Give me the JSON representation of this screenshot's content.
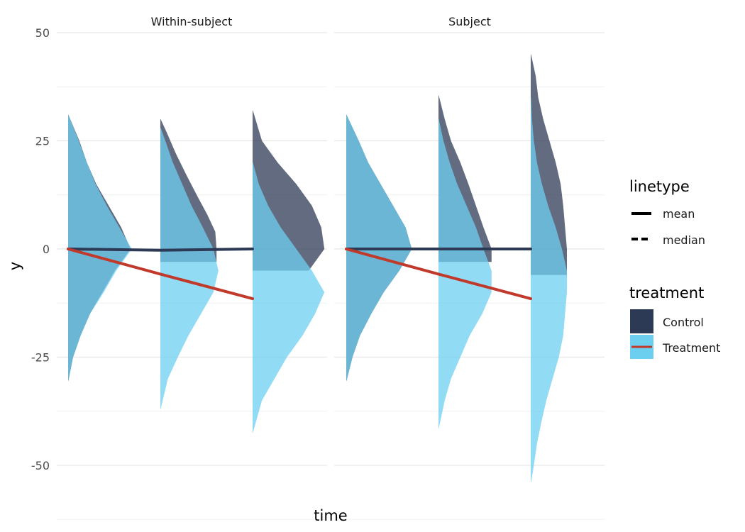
{
  "chart_data": {
    "type": "area",
    "subtype": "half-violin distributions with summary lines, faceted",
    "xlabel": "time",
    "ylabel": "y",
    "ylim": [
      -55,
      50
    ],
    "y_ticks": [
      50,
      25,
      0,
      -25,
      -50
    ],
    "x_time_points": [
      1,
      2,
      3
    ],
    "grid": true,
    "legend_position": "right",
    "colors": {
      "Control": "#2d3a55",
      "Treatment": "#6dcff0",
      "ControlLine": "#2d3a55",
      "TreatmentLine": "#c0392b"
    },
    "panels": [
      {
        "title": "Within-subject",
        "mean_lines": [
          {
            "series": "Control",
            "x": [
              1,
              2,
              3
            ],
            "y": [
              0.0,
              -0.3,
              0.0
            ]
          },
          {
            "series": "Treatment",
            "x": [
              1,
              2,
              3
            ],
            "y": [
              0.0,
              -5.8,
              -11.5
            ]
          }
        ],
        "distributions": [
          {
            "series": "Control",
            "time": 1,
            "y": [
              31,
              25,
              20,
              15,
              10,
              5,
              0,
              -5,
              -10,
              -15,
              -20,
              -25,
              -30.5
            ],
            "density": [
              0.005,
              0.18,
              0.3,
              0.45,
              0.65,
              0.85,
              1.0,
              0.75,
              0.55,
              0.35,
              0.2,
              0.08,
              0.005
            ]
          },
          {
            "series": "Treatment",
            "time": 1,
            "y": [
              31,
              25,
              20,
              15,
              10,
              5,
              0,
              -5,
              -10,
              -15,
              -20,
              -25,
              -30.5
            ],
            "density": [
              0.005,
              0.17,
              0.3,
              0.44,
              0.62,
              0.82,
              1.02,
              0.77,
              0.57,
              0.35,
              0.2,
              0.08,
              0.005
            ]
          },
          {
            "series": "Control",
            "time": 2,
            "y": [
              30,
              27,
              22,
              17,
              12,
              8,
              4,
              0,
              -3
            ],
            "density": [
              0.005,
              0.1,
              0.25,
              0.42,
              0.6,
              0.75,
              0.88,
              0.9,
              0.9
            ]
          },
          {
            "series": "Treatment",
            "time": 2,
            "y": [
              28,
              25,
              20,
              15,
              10,
              5,
              0,
              -5,
              -10,
              -15,
              -20,
              -25,
              -30,
              -37
            ],
            "density": [
              0.005,
              0.08,
              0.2,
              0.35,
              0.5,
              0.68,
              0.85,
              0.93,
              0.85,
              0.65,
              0.45,
              0.28,
              0.12,
              0.005
            ]
          },
          {
            "series": "Control",
            "time": 3,
            "y": [
              32,
              25,
              20,
              15,
              10,
              5,
              0,
              -5
            ],
            "density": [
              0.005,
              0.15,
              0.4,
              0.7,
              0.95,
              1.1,
              1.15,
              0.9
            ]
          },
          {
            "series": "Treatment",
            "time": 3,
            "y": [
              20,
              15,
              10,
              5,
              0,
              -5,
              -10,
              -15,
              -20,
              -25,
              -30,
              -35,
              -42.5
            ],
            "density": [
              0.005,
              0.1,
              0.25,
              0.45,
              0.7,
              0.95,
              1.15,
              1.0,
              0.8,
              0.55,
              0.35,
              0.15,
              0.005
            ]
          }
        ]
      },
      {
        "title": "Subject",
        "mean_lines": [
          {
            "series": "Control",
            "x": [
              1,
              2,
              3
            ],
            "y": [
              0.0,
              0.0,
              0.0
            ]
          },
          {
            "series": "Treatment",
            "x": [
              1,
              2,
              3
            ],
            "y": [
              0.0,
              -5.8,
              -11.5
            ]
          }
        ],
        "distributions": [
          {
            "series": "Control",
            "time": 1,
            "y": [
              31,
              25,
              20,
              15,
              10,
              5,
              0,
              -5,
              -10,
              -15,
              -20,
              -25,
              -30.5
            ],
            "density": [
              0.005,
              0.2,
              0.35,
              0.55,
              0.75,
              0.95,
              1.05,
              0.85,
              0.6,
              0.4,
              0.22,
              0.1,
              0.005
            ]
          },
          {
            "series": "Treatment",
            "time": 1,
            "y": [
              31,
              25,
              20,
              15,
              10,
              5,
              0,
              -5,
              -10,
              -15,
              -20,
              -25,
              -30.5
            ],
            "density": [
              0.005,
              0.2,
              0.35,
              0.55,
              0.75,
              0.95,
              1.05,
              0.85,
              0.6,
              0.4,
              0.22,
              0.1,
              0.005
            ]
          },
          {
            "series": "Control",
            "time": 2,
            "y": [
              35.5,
              30,
              25,
              20,
              15,
              10,
              5,
              0,
              -3
            ],
            "density": [
              0.005,
              0.1,
              0.2,
              0.35,
              0.48,
              0.6,
              0.72,
              0.85,
              0.85
            ]
          },
          {
            "series": "Treatment",
            "time": 2,
            "y": [
              30,
              25,
              20,
              15,
              10,
              5,
              0,
              -5,
              -10,
              -15,
              -20,
              -25,
              -30,
              -35,
              -41.5
            ],
            "density": [
              0.005,
              0.08,
              0.18,
              0.3,
              0.45,
              0.6,
              0.72,
              0.85,
              0.85,
              0.7,
              0.5,
              0.35,
              0.2,
              0.1,
              0.005
            ]
          },
          {
            "series": "Control",
            "time": 3,
            "y": [
              45,
              40,
              35,
              30,
              25,
              20,
              15,
              10,
              5,
              0,
              -6
            ],
            "density": [
              0.005,
              0.08,
              0.12,
              0.2,
              0.3,
              0.4,
              0.48,
              0.52,
              0.55,
              0.58,
              0.58
            ]
          },
          {
            "series": "Treatment",
            "time": 3,
            "y": [
              35,
              30,
              25,
              20,
              15,
              10,
              5,
              0,
              -5,
              -10,
              -15,
              -20,
              -25,
              -30,
              -35,
              -40,
              -45,
              -50,
              -54
            ],
            "density": [
              0.005,
              0.02,
              0.05,
              0.1,
              0.18,
              0.28,
              0.4,
              0.5,
              0.58,
              0.58,
              0.55,
              0.52,
              0.45,
              0.35,
              0.25,
              0.17,
              0.1,
              0.05,
              0.005
            ]
          }
        ]
      }
    ],
    "legend": {
      "linetype": {
        "title": "linetype",
        "items": [
          "mean",
          "median"
        ]
      },
      "treatment": {
        "title": "treatment",
        "items": [
          "Control",
          "Treatment"
        ]
      }
    }
  }
}
